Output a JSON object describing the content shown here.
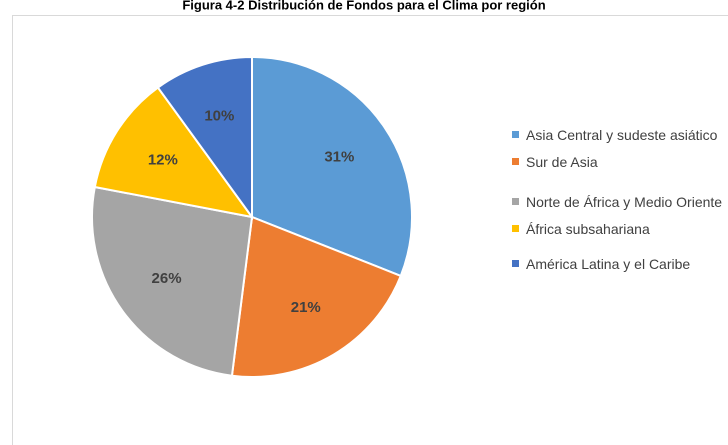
{
  "chart_data": {
    "type": "pie",
    "title": "Figura 4-2 Distribución de Fondos para el Clima por región",
    "categories": [
      "Asia Central y sudeste asiático",
      "Sur de Asia",
      "Norte de África y Medio Oriente",
      "África subsahariana",
      "América Latina y el Caribe"
    ],
    "values": [
      31,
      21,
      26,
      12,
      10
    ],
    "value_labels": [
      "31%",
      "21%",
      "26%",
      "12%",
      "10%"
    ],
    "colors": [
      "#5b9bd5",
      "#ed7d31",
      "#a5a5a5",
      "#ffc000",
      "#4472c4"
    ],
    "legend": "right"
  }
}
